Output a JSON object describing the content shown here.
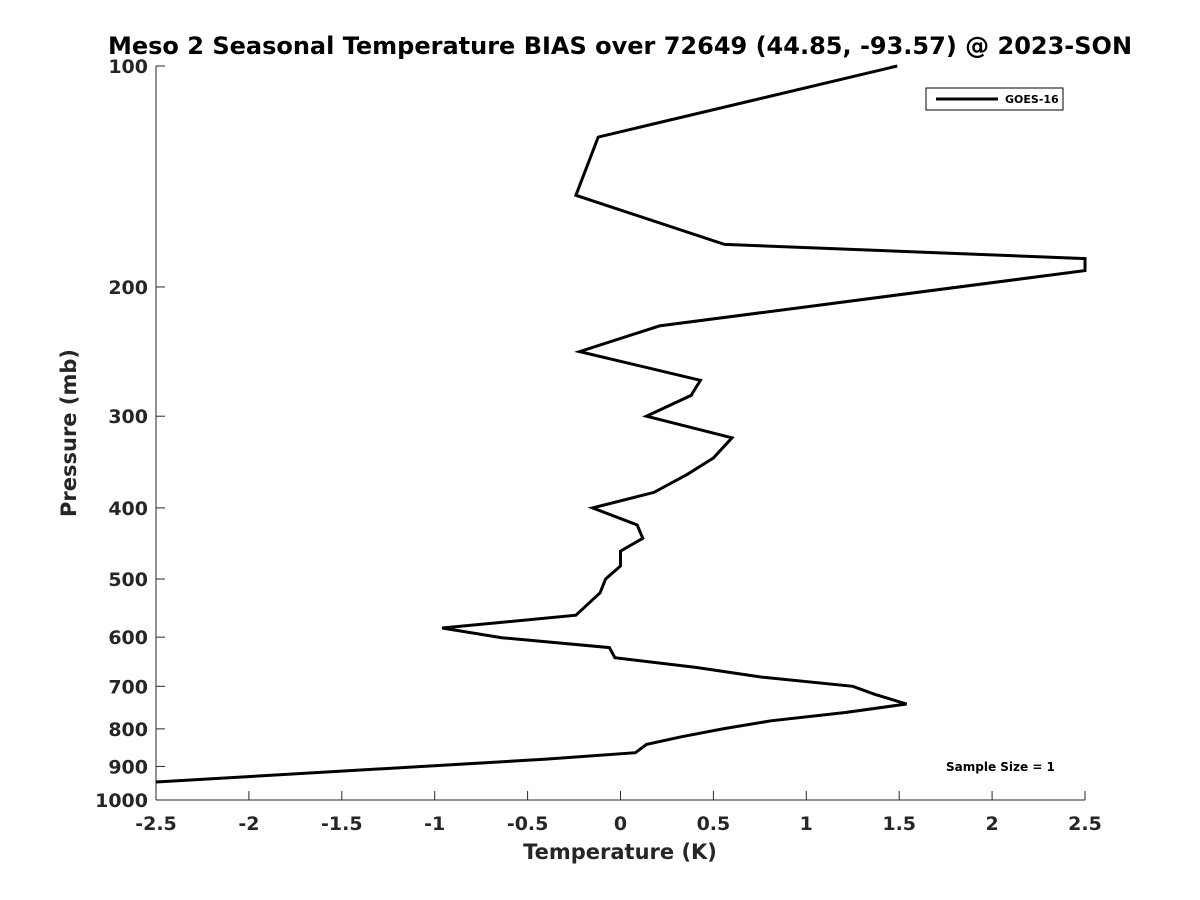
{
  "chart_data": {
    "type": "line",
    "title": "Meso 2 Seasonal Temperature BIAS over 72649 (44.85, -93.57) @ 2023-SON",
    "xlabel": "Temperature (K)",
    "ylabel": "Pressure (mb)",
    "xlim": [
      -2.5,
      2.5
    ],
    "ylim": [
      100,
      1000
    ],
    "y_scale": "log",
    "y_reversed": true,
    "x_ticks": [
      -2.5,
      -2,
      -1.5,
      -1,
      -0.5,
      0,
      0.5,
      1,
      1.5,
      2,
      2.5
    ],
    "x_tick_labels": [
      "-2.5",
      "-2",
      "-1.5",
      "-1",
      "-0.5",
      "0",
      "0.5",
      "1",
      "1.5",
      "2",
      "2.5"
    ],
    "y_ticks": [
      100,
      200,
      300,
      400,
      500,
      600,
      700,
      800,
      900,
      1000
    ],
    "y_tick_labels": [
      "100",
      "200",
      "300",
      "400",
      "500",
      "600",
      "700",
      "800",
      "900",
      "1000"
    ],
    "grid": false,
    "legend_position": "top-right",
    "annotation": "Sample Size = 1",
    "series": [
      {
        "name": "GOES-16",
        "color": "#000000",
        "points": [
          {
            "x": 1.49,
            "p": 100
          },
          {
            "x": -0.12,
            "p": 125
          },
          {
            "x": -0.24,
            "p": 150
          },
          {
            "x": 0.56,
            "p": 175
          },
          {
            "x": 2.5,
            "p": 183
          },
          {
            "x": 2.5,
            "p": 190
          },
          {
            "x": 0.21,
            "p": 226
          },
          {
            "x": -0.22,
            "p": 245
          },
          {
            "x": 0.43,
            "p": 268
          },
          {
            "x": 0.38,
            "p": 281
          },
          {
            "x": 0.14,
            "p": 300
          },
          {
            "x": 0.6,
            "p": 321
          },
          {
            "x": 0.5,
            "p": 342
          },
          {
            "x": 0.36,
            "p": 360
          },
          {
            "x": 0.18,
            "p": 381
          },
          {
            "x": -0.15,
            "p": 400
          },
          {
            "x": 0.09,
            "p": 422
          },
          {
            "x": 0.12,
            "p": 440
          },
          {
            "x": 0.0,
            "p": 458
          },
          {
            "x": 0.0,
            "p": 480
          },
          {
            "x": -0.08,
            "p": 500
          },
          {
            "x": -0.11,
            "p": 522
          },
          {
            "x": -0.24,
            "p": 560
          },
          {
            "x": -0.96,
            "p": 583
          },
          {
            "x": -0.64,
            "p": 601
          },
          {
            "x": -0.06,
            "p": 620
          },
          {
            "x": -0.03,
            "p": 640
          },
          {
            "x": 0.41,
            "p": 660
          },
          {
            "x": 0.76,
            "p": 680
          },
          {
            "x": 1.25,
            "p": 700
          },
          {
            "x": 1.37,
            "p": 718
          },
          {
            "x": 1.54,
            "p": 740
          },
          {
            "x": 1.21,
            "p": 760
          },
          {
            "x": 0.81,
            "p": 780
          },
          {
            "x": 0.55,
            "p": 800
          },
          {
            "x": 0.33,
            "p": 820
          },
          {
            "x": 0.14,
            "p": 840
          },
          {
            "x": 0.08,
            "p": 862
          },
          {
            "x": -0.41,
            "p": 880
          },
          {
            "x": -2.5,
            "p": 945
          }
        ]
      }
    ]
  }
}
